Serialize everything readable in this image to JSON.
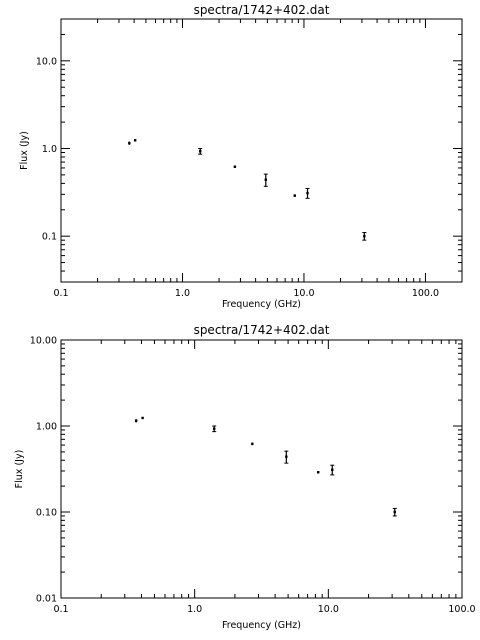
{
  "chart_data": [
    {
      "type": "scatter",
      "title": "spectra/1742+402.dat",
      "xlabel": "Frequency (GHz)",
      "ylabel": "Flux (Jy)",
      "xscale": "log",
      "yscale": "log",
      "xlim": [
        0.1,
        200
      ],
      "ylim": [
        0.03,
        30
      ],
      "xticks": [
        0.1,
        1.0,
        10.0,
        100.0
      ],
      "xtick_labels": [
        "0.1",
        "1.0",
        "10.0",
        "100.0"
      ],
      "yticks": [
        0.1,
        1.0,
        10.0
      ],
      "ytick_labels": [
        "0.1",
        "1.0",
        "10.0"
      ],
      "grid": false,
      "series": [
        {
          "x": [
            0.365,
            0.408,
            1.4,
            2.7,
            4.85,
            8.4,
            10.7,
            31.4
          ],
          "y": [
            1.15,
            1.24,
            0.93,
            0.62,
            0.44,
            0.29,
            0.31,
            0.1
          ],
          "yerr": [
            0.05,
            0.03,
            0.07,
            0.02,
            0.07,
            0.01,
            0.04,
            0.01
          ]
        }
      ]
    },
    {
      "type": "scatter",
      "title": "spectra/1742+402.dat",
      "xlabel": "Frequency (GHz)",
      "ylabel": "Flux (Jy)",
      "xscale": "log",
      "yscale": "log",
      "xlim": [
        0.1,
        100
      ],
      "ylim": [
        0.01,
        10
      ],
      "xticks": [
        0.1,
        1.0,
        10.0,
        100.0
      ],
      "xtick_labels": [
        "0.1",
        "1.0",
        "10.0",
        "100.0"
      ],
      "yticks": [
        0.01,
        0.1,
        1.0,
        10.0
      ],
      "ytick_labels": [
        "0.01",
        "0.10",
        "1.00",
        "10.00"
      ],
      "grid": false,
      "series": [
        {
          "x": [
            0.365,
            0.408,
            1.4,
            2.7,
            4.85,
            8.4,
            10.7,
            31.4
          ],
          "y": [
            1.15,
            1.24,
            0.93,
            0.62,
            0.44,
            0.29,
            0.31,
            0.1
          ],
          "yerr": [
            0.05,
            0.03,
            0.07,
            0.02,
            0.07,
            0.01,
            0.04,
            0.01
          ]
        }
      ]
    }
  ]
}
